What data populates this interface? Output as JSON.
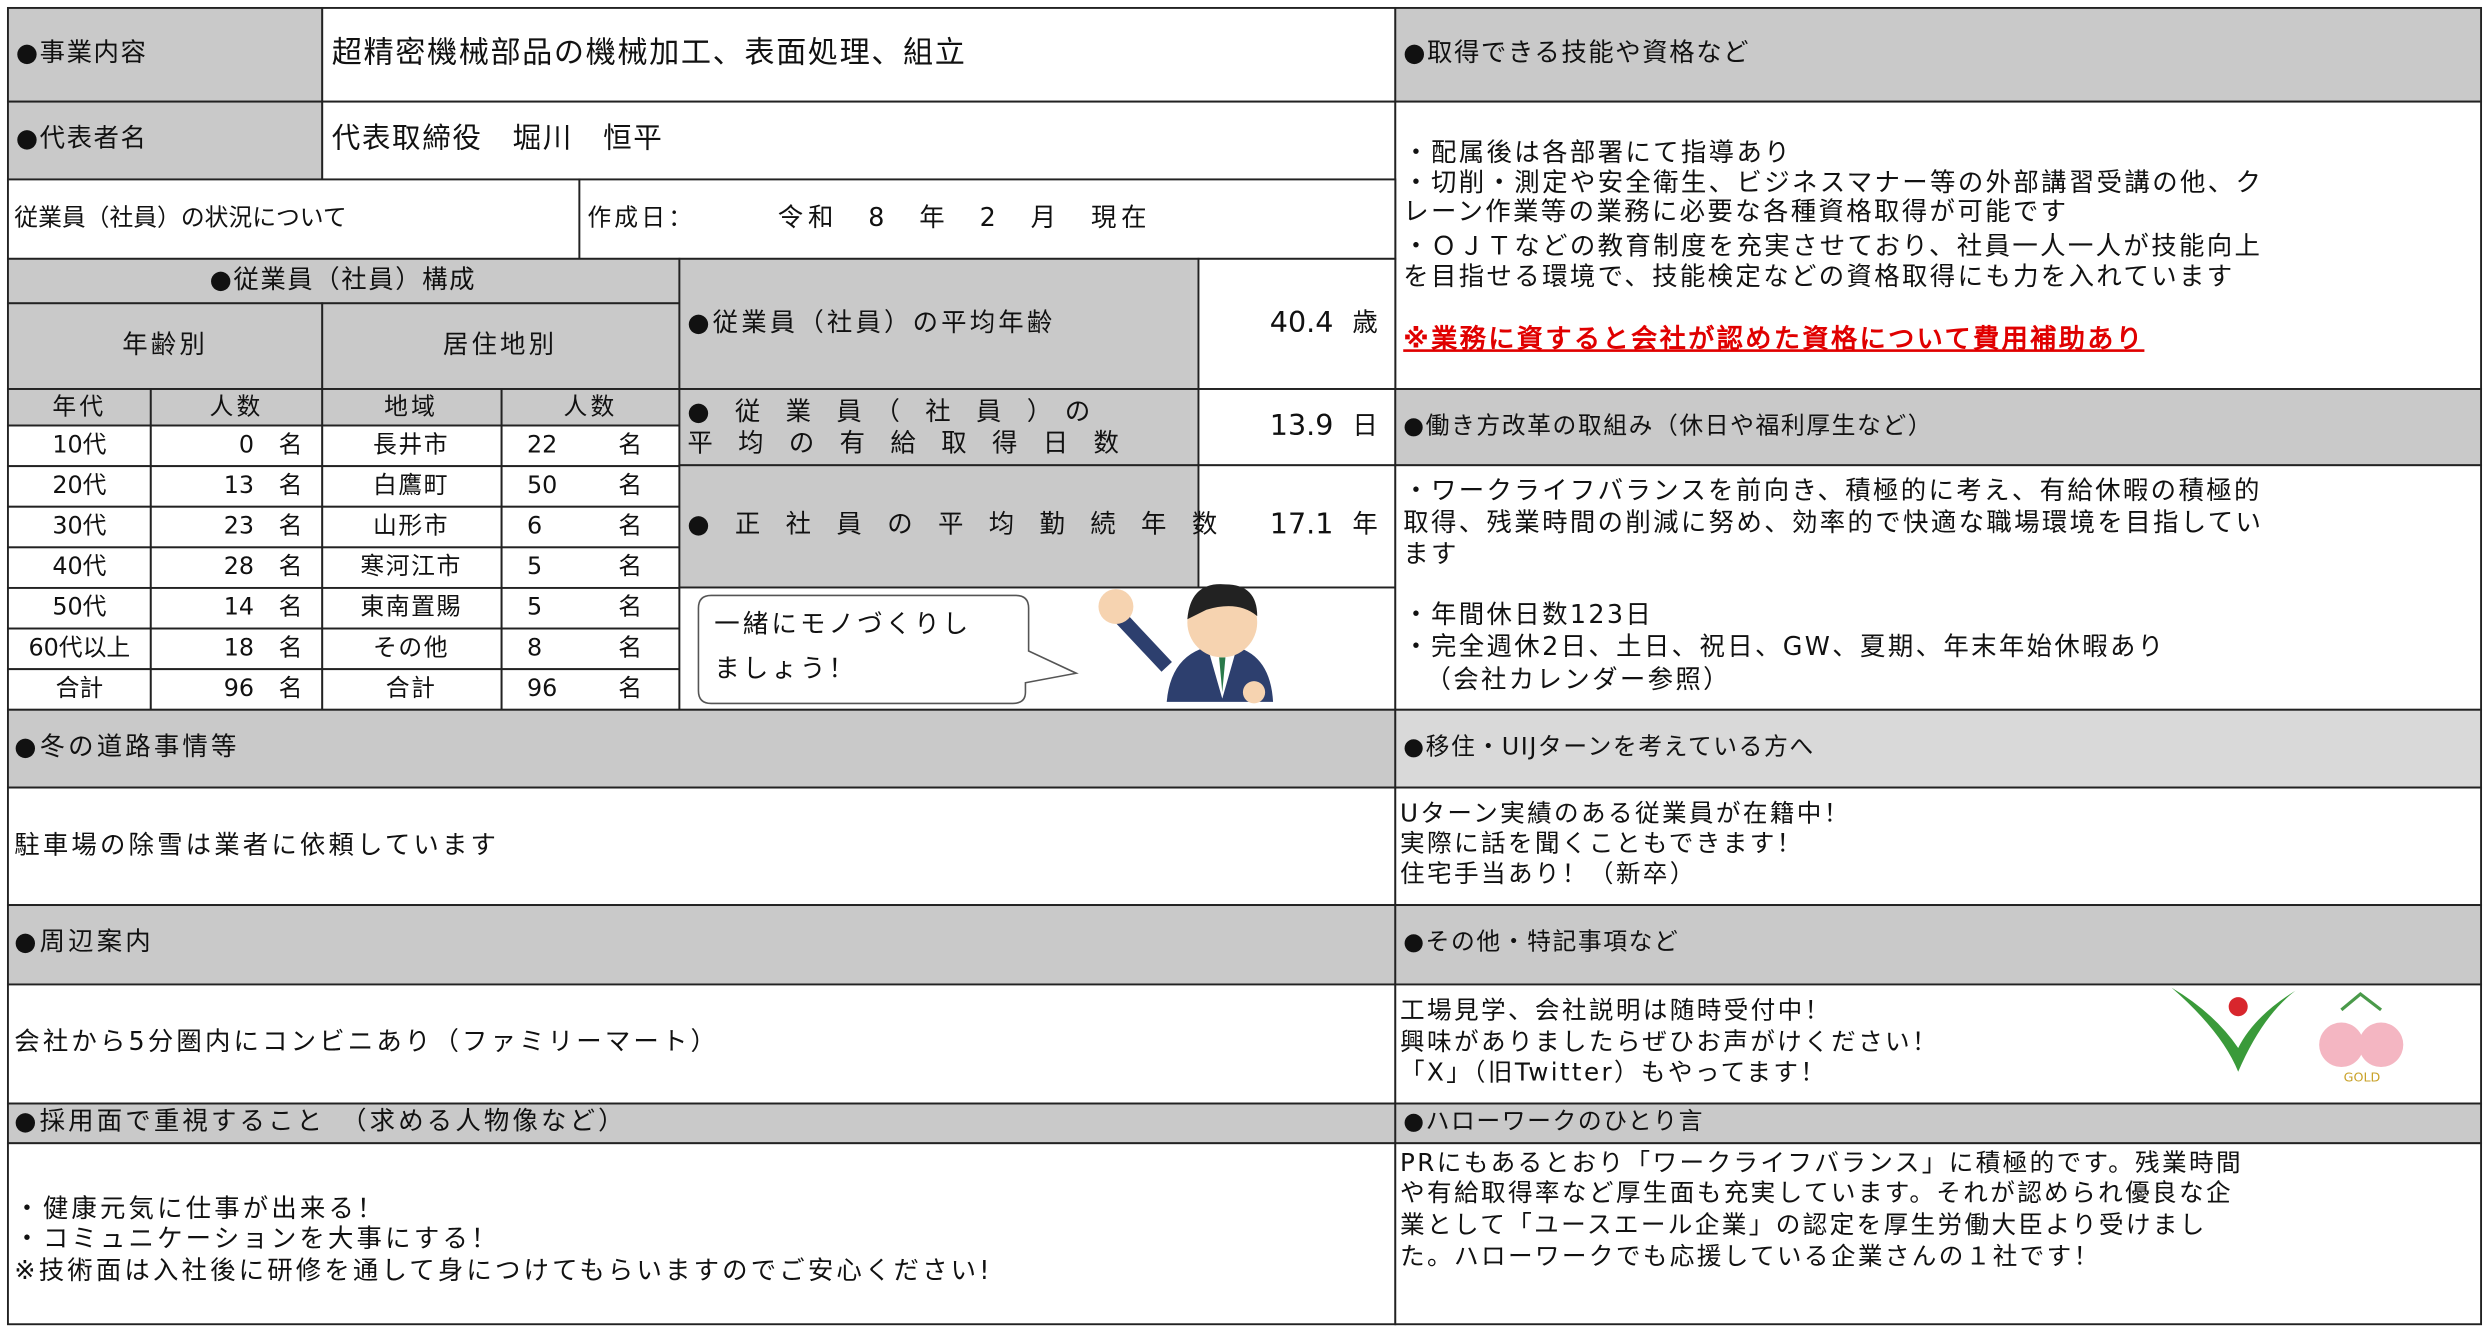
{
  "business": {
    "label": "●事業内容",
    "value": "超精密機械部品の機械加工、表面処理、組立"
  },
  "representative": {
    "label": "●代表者名",
    "value": "代表取締役　堀川　恒平"
  },
  "status": {
    "title": "従業員（社員）の状況について",
    "date_label": "作成日：",
    "date": "令和　8　年　2　月　現在"
  },
  "composition": {
    "title": "●従業員（社員）構成",
    "age_header": "年齢別",
    "area_header": "居住地別",
    "columns": [
      "年代",
      "人数",
      "地域",
      "人数"
    ],
    "unit": "名",
    "rows": [
      {
        "age": "10代",
        "age_count": 0,
        "area": "長井市",
        "area_count": 22
      },
      {
        "age": "20代",
        "age_count": 13,
        "area": "白鷹町",
        "area_count": 50
      },
      {
        "age": "30代",
        "age_count": 23,
        "area": "山形市",
        "area_count": 6
      },
      {
        "age": "40代",
        "age_count": 28,
        "area": "寒河江市",
        "area_count": 5
      },
      {
        "age": "50代",
        "age_count": 14,
        "area": "東南置賜",
        "area_count": 5
      },
      {
        "age": "60代以上",
        "age_count": 18,
        "area": "その他",
        "area_count": 8
      },
      {
        "age": "合計",
        "age_count": 96,
        "area": "合計",
        "area_count": 96
      }
    ]
  },
  "stats": [
    {
      "label_lines": [
        "●従業員（社員）の平均年齢"
      ],
      "value": 40.4,
      "unit": "歳"
    },
    {
      "label_lines": [
        "●　従　業　員　（　社　員　）　の",
        "平　均　の　有　給　取　得　日　数"
      ],
      "value": 13.9,
      "unit": "日"
    },
    {
      "label_lines": [
        "●　正　社　員　の　平　均　勤　続　年　数"
      ],
      "value": 17.1,
      "unit": "年"
    }
  ],
  "bubble": [
    "一緒にモノづくりし",
    "ましょう！"
  ],
  "skills": {
    "title": "●取得できる技能や資格など",
    "lines": [
      "・配属後は各部署にて指導あり",
      "・切削・測定や安全衛生、ビジネスマナー等の外部講習受講の他、ク",
      "レーン作業等の業務に必要な各種資格取得が可能です",
      "・ＯＪＴなどの教育制度を充実させており、社員一人一人が技能向上",
      "を目指せる環境で、技能検定などの資格取得にも力を入れています"
    ],
    "note": "※業務に資すると会社が認めた資格について費用補助あり"
  },
  "work_style": {
    "title": "●働き方改革の取組み（休日や福利厚生など）",
    "lines": [
      "・ワークライフバランスを前向き、積極的に考え、有給休暇の積極的",
      "取得、残業時間の削減に努め、効率的で快適な職場環境を目指してい",
      "ます",
      "・年間休日数123日",
      "・完全週休2日、土日、祝日、GW、夏期、年末年始休暇あり",
      "（会社カレンダー参照）"
    ]
  },
  "winter": {
    "title": "●冬の道路事情等",
    "lines": [
      "駐車場の除雪は業者に依頼しています"
    ]
  },
  "uij": {
    "title": "●移住・UIJターンを考えている方へ",
    "lines": [
      "Uターン実績のある従業員が在籍中！",
      "実際に話を聞くこともできます！",
      "住宅手当あり！（新卒）"
    ]
  },
  "surroundings": {
    "title": "●周辺案内",
    "lines": [
      "会社から5分圏内にコンビニあり（ファミリーマート）"
    ]
  },
  "other": {
    "title": "●その他・特記事項など",
    "lines": [
      "工場見学、会社説明は随時受付中！",
      "興味がありましたらぜひお声がけください！",
      "「X」（旧Twitter）もやってます！"
    ],
    "logo_text": "GOLD"
  },
  "hiring": {
    "title": "●採用面で重視すること　（求める人物像など）",
    "lines": [
      "・健康元気に仕事が出来る！",
      "・コミュニケーションを大事にする！",
      "※技術面は入社後に研修を通して身につけてもらいますのでご安心ください!"
    ]
  },
  "hellowork": {
    "title": "●ハローワークのひとり言",
    "lines": [
      "PRにもあるとおり「ワークライフバランス」に積極的です。残業時間",
      "や有給取得率など厚生面も充実しています。それが認められ優良な企",
      "業として「ユースエール企業」の認定を厚生労働大臣より受けまし",
      "た。ハローワークでも応援している企業さんの１社です！"
    ]
  }
}
